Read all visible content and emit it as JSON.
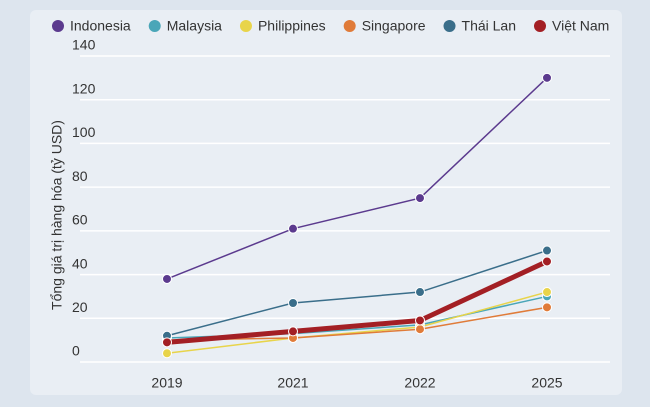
{
  "chart_data": {
    "type": "line",
    "categories": [
      "2019",
      "2021",
      "2022",
      "2025"
    ],
    "y_label": "Tổng giá trị hàng hóa (tỷ USD)",
    "ylim": [
      0,
      140
    ],
    "yticks": [
      0,
      20,
      40,
      60,
      80,
      100,
      120,
      140
    ],
    "grid": true,
    "legend": "top",
    "series": [
      {
        "name": "Indonesia",
        "color": "#5b3a8e",
        "values": [
          38,
          61,
          75,
          130
        ]
      },
      {
        "name": "Malaysia",
        "color": "#4aa6b8",
        "values": [
          11,
          13,
          17,
          30
        ]
      },
      {
        "name": "Philippines",
        "color": "#e8d44a",
        "values": [
          4,
          11,
          16,
          32
        ]
      },
      {
        "name": "Singapore",
        "color": "#e07b39",
        "values": [
          10,
          11,
          15,
          25
        ]
      },
      {
        "name": "Thái Lan",
        "color": "#3a6e8a",
        "values": [
          12,
          27,
          32,
          51
        ]
      },
      {
        "name": "Việt Nam",
        "color": "#a31f24",
        "values": [
          9,
          14,
          19,
          46
        ]
      }
    ]
  }
}
